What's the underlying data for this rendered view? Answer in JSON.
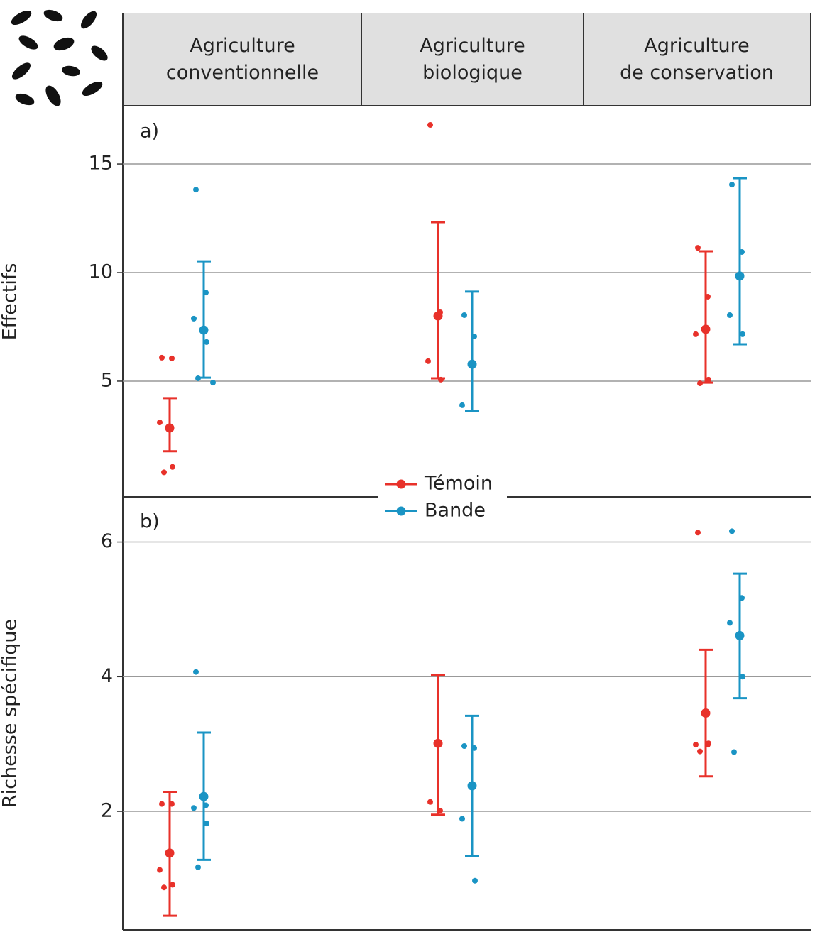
{
  "chart_data": [
    {
      "type": "dot",
      "label": "a)",
      "y_label": "Effectifs",
      "categories": [
        "Agriculture\nconventionnelle",
        "Agriculture\nbiologique",
        "Agriculture\nde conservation"
      ],
      "ylim": [
        -0.33,
        17.65
      ],
      "yticks": [
        5,
        10,
        15
      ],
      "series": [
        {
          "name": "Témoin",
          "color": "#e8312a",
          "values": [
            2.84,
            8.0,
            7.39
          ],
          "ci_low": [
            1.77,
            5.13,
            4.93
          ],
          "ci_high": [
            4.22,
            12.32,
            10.98
          ],
          "points": [
            [
              6.08,
              6.05,
              3.1,
              1.05,
              0.8
            ],
            [
              16.8,
              8.17,
              5.92,
              5.07
            ],
            [
              11.14,
              8.89,
              7.16,
              5.07,
              4.9
            ]
          ]
        },
        {
          "name": "Bande",
          "color": "#1a94c4",
          "values": [
            7.35,
            5.78,
            9.84
          ],
          "ci_low": [
            5.16,
            3.63,
            6.7
          ],
          "ci_high": [
            10.52,
            9.12,
            14.35
          ],
          "points": [
            [
              13.82,
              9.08,
              7.88,
              6.8,
              5.13,
              4.93
            ],
            [
              8.04,
              7.06,
              3.89
            ],
            [
              14.05,
              10.95,
              8.04,
              7.16
            ]
          ]
        }
      ]
    },
    {
      "type": "dot",
      "label": "b)",
      "y_label": "Richesse spécifique",
      "ylim": [
        0.24,
        6.67
      ],
      "yticks": [
        2,
        4,
        6
      ],
      "series": [
        {
          "color": "#e8312a",
          "values": [
            1.38,
            3.01,
            3.46
          ],
          "ci_low": [
            0.45,
            1.95,
            2.52
          ],
          "ci_high": [
            2.29,
            4.02,
            4.4
          ],
          "points": [
            [
              2.11,
              2.11,
              1.13,
              0.91,
              0.87
            ],
            [
              2.14,
              2.01
            ],
            [
              6.14,
              2.99,
              2.99,
              3.01,
              2.89
            ]
          ]
        },
        {
          "color": "#1a94c4",
          "values": [
            2.22,
            2.38,
            4.61
          ],
          "ci_low": [
            1.28,
            1.34,
            3.68
          ],
          "ci_high": [
            3.17,
            3.42,
            5.53
          ],
          "points": [
            [
              4.07,
              2.09,
              2.05,
              1.82,
              1.17
            ],
            [
              2.97,
              2.94,
              1.89,
              0.97
            ],
            [
              6.16,
              5.17,
              4.8,
              4.0,
              2.88
            ]
          ]
        }
      ]
    }
  ]
}
